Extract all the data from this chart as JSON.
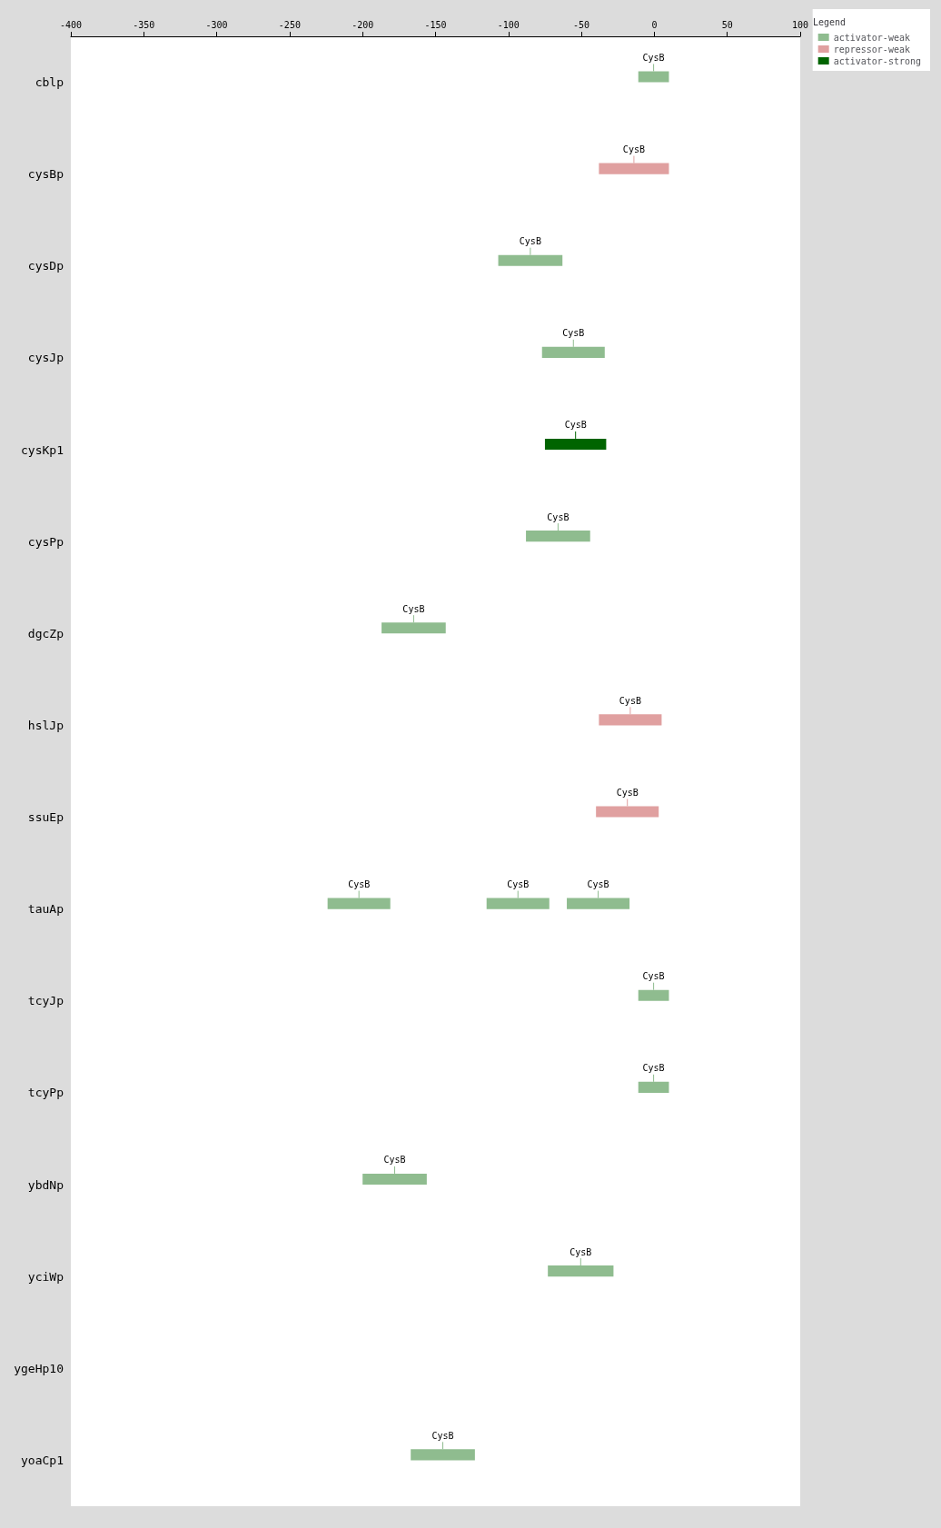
{
  "chart_data": {
    "type": "bar",
    "orientation": "horizontal",
    "legend": "top right",
    "legend_title": "Legend",
    "categories": [
      "cblp",
      "cysBp",
      "cysDp",
      "cysJp",
      "cysKp1",
      "cysPp",
      "dgcZp",
      "hslJp",
      "ssuEp",
      "tauAp",
      "tcyJp",
      "tcyPp",
      "ybdNp",
      "yciWp",
      "ygeHp10",
      "yoaCp1"
    ],
    "xlim": [
      -400,
      100
    ],
    "xticks": [
      -400,
      -350,
      -300,
      -250,
      -200,
      -150,
      -100,
      -50,
      0,
      50,
      100
    ],
    "series": [
      {
        "name": "activator-weak",
        "color": "#8fbc8f",
        "base": [
          -11,
          null,
          -107,
          -77,
          null,
          -88,
          -187,
          null,
          null,
          -224,
          -11,
          -11,
          -200,
          -73,
          null,
          -167
        ],
        "values": [
          21,
          null,
          44,
          43,
          null,
          44,
          44,
          null,
          null,
          43,
          21,
          21,
          44,
          45,
          null,
          44
        ],
        "value_labels": [
          "CysB",
          null,
          "CysB",
          "CysB",
          null,
          "CysB",
          "CysB",
          null,
          null,
          "CysB",
          "CysB",
          "CysB",
          "CysB",
          "CysB",
          null,
          "CysB"
        ]
      },
      {
        "name": "repressor-weak",
        "color": "#e0a0a0",
        "base": [
          null,
          -38,
          null,
          null,
          null,
          null,
          null,
          -38,
          -40,
          null,
          null,
          null,
          null,
          null,
          null,
          null
        ],
        "values": [
          null,
          48,
          null,
          null,
          null,
          null,
          null,
          43,
          43,
          null,
          null,
          null,
          null,
          null,
          null,
          null
        ],
        "value_labels": [
          null,
          "CysB",
          null,
          null,
          null,
          null,
          null,
          "CysB",
          "CysB",
          null,
          null,
          null,
          null,
          null,
          null,
          null
        ]
      },
      {
        "name": "activator-strong",
        "color": "#006400",
        "base": [
          null,
          null,
          null,
          null,
          -75,
          null,
          null,
          null,
          null,
          null,
          null,
          null,
          null,
          null,
          null,
          null
        ],
        "values": [
          null,
          null,
          null,
          null,
          42,
          null,
          null,
          null,
          null,
          null,
          null,
          null,
          null,
          null,
          null,
          null
        ],
        "value_labels": [
          null,
          null,
          null,
          null,
          "CysB",
          null,
          null,
          null,
          null,
          null,
          null,
          null,
          null,
          null,
          null,
          null
        ]
      },
      {
        "color": "#8fbc8f",
        "base": [
          null,
          null,
          null,
          null,
          null,
          null,
          null,
          null,
          null,
          -115,
          null,
          null,
          null,
          null,
          null,
          null
        ],
        "values": [
          null,
          null,
          null,
          null,
          null,
          null,
          null,
          null,
          null,
          43,
          null,
          null,
          null,
          null,
          null,
          null
        ],
        "value_labels": [
          null,
          null,
          null,
          null,
          null,
          null,
          null,
          null,
          null,
          "CysB",
          null,
          null,
          null,
          null,
          null,
          null
        ]
      },
      {
        "color": "#8fbc8f",
        "base": [
          null,
          null,
          null,
          null,
          null,
          null,
          null,
          null,
          null,
          -60,
          null,
          null,
          null,
          null,
          null,
          null
        ],
        "values": [
          null,
          null,
          null,
          null,
          null,
          null,
          null,
          null,
          null,
          43,
          null,
          null,
          null,
          null,
          null,
          null
        ],
        "value_labels": [
          null,
          null,
          null,
          null,
          null,
          null,
          null,
          null,
          null,
          "CysB",
          null,
          null,
          null,
          null,
          null,
          null
        ]
      }
    ]
  }
}
